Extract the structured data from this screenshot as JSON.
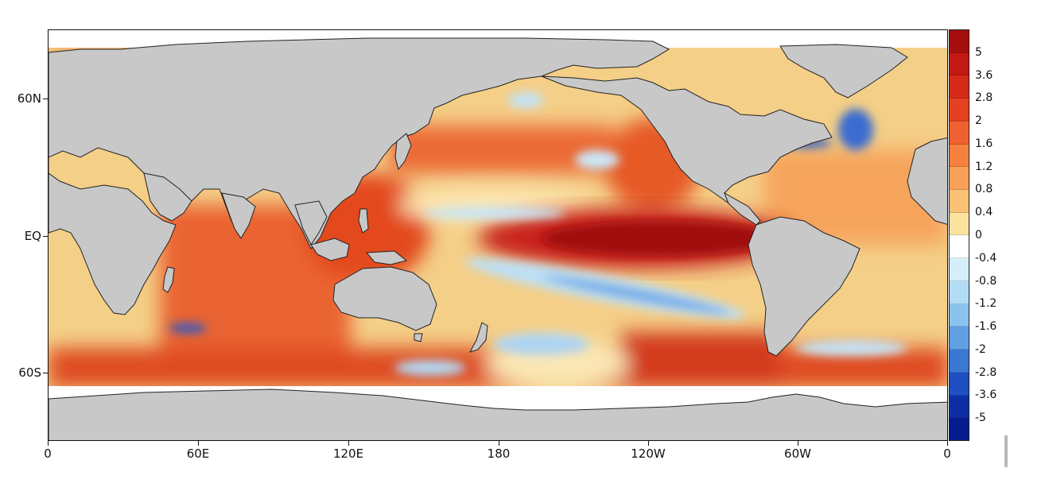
{
  "map": {
    "lat_labels": [
      "60N",
      "EQ",
      "60S"
    ],
    "lon_labels": [
      "0",
      "60E",
      "120E",
      "180",
      "120W",
      "60W",
      "0"
    ]
  },
  "colorbar": {
    "labels": [
      "5",
      "3.6",
      "2.8",
      "2",
      "1.6",
      "1.2",
      "0.8",
      "0.4",
      "0",
      "-0.4",
      "-0.8",
      "-1.2",
      "-1.6",
      "-2",
      "-2.8",
      "-3.6",
      "-5"
    ],
    "colors": [
      "#a60e0e",
      "#c21a12",
      "#d62a18",
      "#e5401f",
      "#ef6130",
      "#f5813f",
      "#f8a057",
      "#fac177",
      "#fbe29e",
      "#ffffff",
      "#d6eefa",
      "#b2dcf5",
      "#8ac3ee",
      "#5f9fe2",
      "#3a78d2",
      "#1f4fc0",
      "#0d2fa6",
      "#041c8c"
    ]
  },
  "colors": {
    "land": "#c8c8c8",
    "ice": "#ffffff",
    "coast": "#222222"
  }
}
